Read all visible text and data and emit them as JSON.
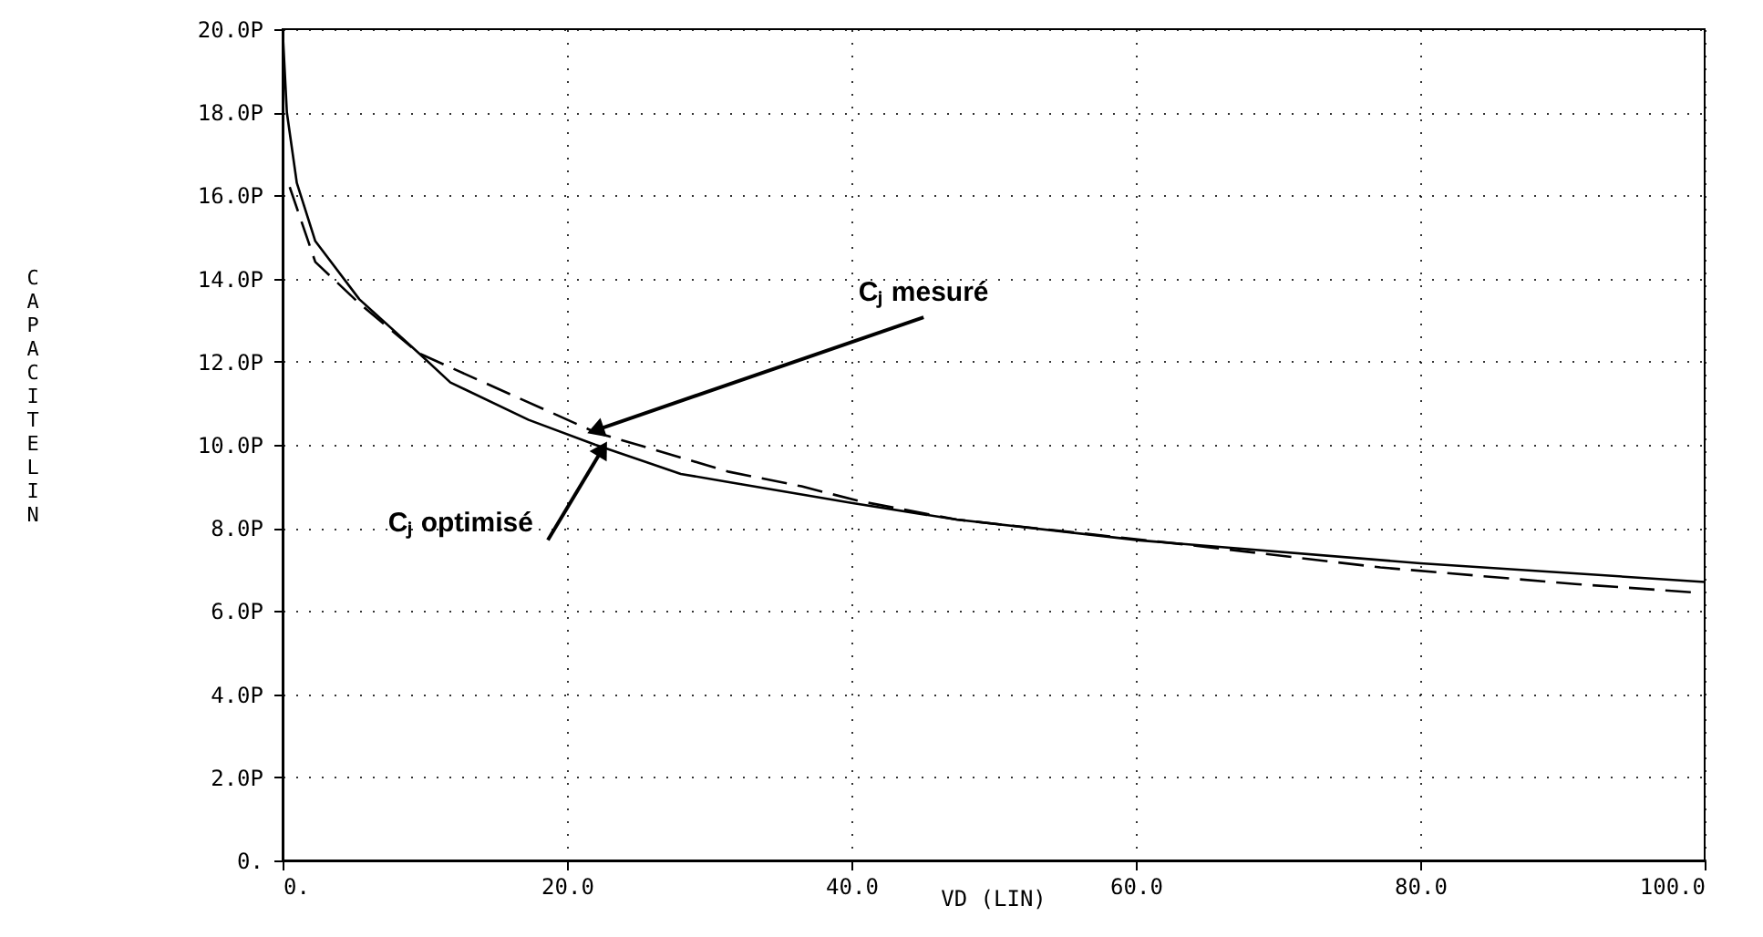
{
  "chart_data": {
    "type": "line",
    "xlabel": "VD (LIN)",
    "ylabel": "CAPACITE LIN",
    "xlim": [
      0,
      100
    ],
    "ylim": [
      0,
      20
    ],
    "xticks": [
      {
        "value": 0,
        "label": "0."
      },
      {
        "value": 20,
        "label": "20.0"
      },
      {
        "value": 40,
        "label": "40.0"
      },
      {
        "value": 60,
        "label": "60.0"
      },
      {
        "value": 80,
        "label": "80.0"
      },
      {
        "value": 100,
        "label": "100.0"
      }
    ],
    "yticks": [
      {
        "value": 0,
        "label": "0."
      },
      {
        "value": 2,
        "label": "2.0P"
      },
      {
        "value": 4,
        "label": "4.0P"
      },
      {
        "value": 6,
        "label": "6.0P"
      },
      {
        "value": 8,
        "label": "8.0P"
      },
      {
        "value": 10,
        "label": "10.0P"
      },
      {
        "value": 12,
        "label": "12.0P"
      },
      {
        "value": 14,
        "label": "14.0P"
      },
      {
        "value": 16,
        "label": "16.0P"
      },
      {
        "value": 18,
        "label": "18.0P"
      },
      {
        "value": 20,
        "label": "20.0P"
      }
    ],
    "grid": true,
    "marker": "none",
    "series": [
      {
        "color": "#000000",
        "line_style": "solid",
        "x": [
          0,
          0.3,
          1,
          2.3,
          5.4,
          9.6,
          11.8,
          17.3,
          22,
          28,
          31.4,
          40,
          47.4,
          60.3,
          80,
          100
        ],
        "values": [
          20,
          18.0,
          16.3,
          14.9,
          13.5,
          12.2,
          11.5,
          10.6,
          10.0,
          9.3,
          9.1,
          8.6,
          8.2,
          7.7,
          7.15,
          6.7
        ]
      },
      {
        "color": "#000000",
        "line_style": "dashed",
        "x": [
          0.5,
          2.3,
          5.4,
          9.6,
          12.2,
          22,
          31.4,
          36.5,
          40.5,
          47.4,
          63.5,
          77.2,
          90.9,
          99.2
        ],
        "values": [
          16.2,
          14.4,
          13.4,
          12.2,
          11.8,
          10.3,
          9.35,
          9.0,
          8.65,
          8.2,
          7.6,
          7.05,
          6.65,
          6.45
        ]
      }
    ],
    "annotations": [
      {
        "text": "Cⱼ mesuré",
        "x": 22,
        "y": 10.35
      },
      {
        "text": "Cⱼ optimisé",
        "x": 22.5,
        "y": 9.9
      }
    ]
  }
}
